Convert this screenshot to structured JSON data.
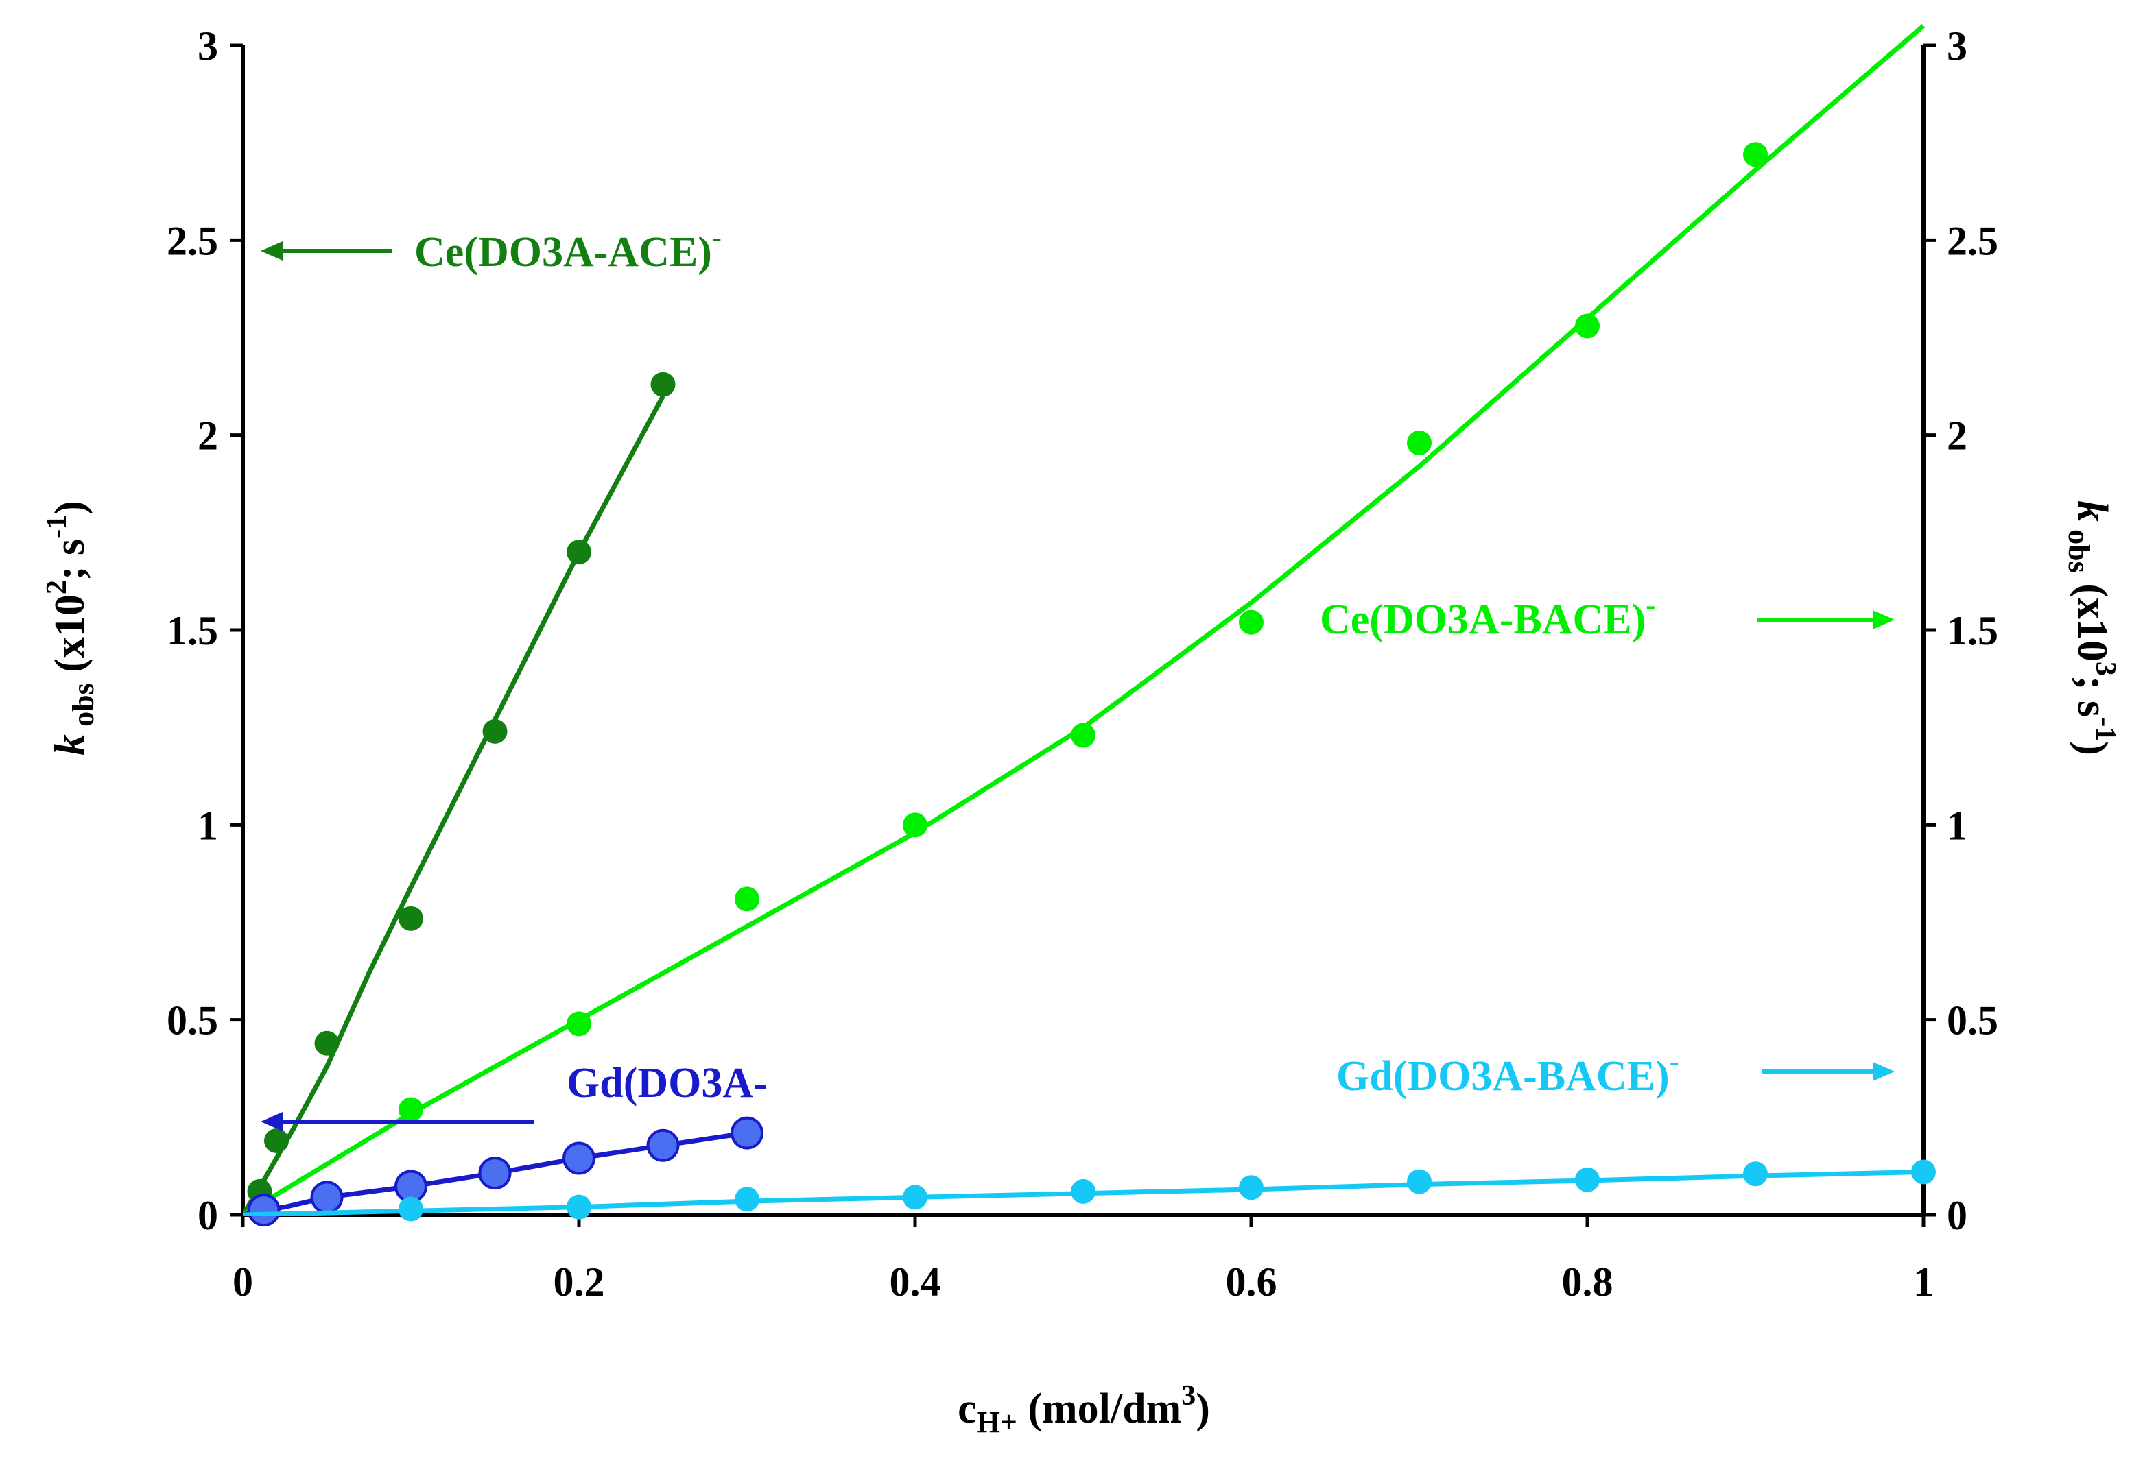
{
  "chart_data": {
    "type": "scatter",
    "x": {
      "label_main": "c",
      "label_sub": "H+",
      "label_rest": " (mol/dm",
      "label_sup": "3",
      "label_end": ")",
      "lim": [
        0,
        1
      ],
      "ticks": [
        0,
        0.2,
        0.4,
        0.6,
        0.8,
        1
      ],
      "tick_labels": [
        "0",
        "0.2",
        "0.4",
        "0.6",
        "0.8",
        "1"
      ]
    },
    "y_left": {
      "label_k": "k",
      "label_sub": " obs",
      "label_rest": " (x10",
      "label_sup": "2",
      "label_rest2": "; s",
      "label_sup2": "-1",
      "label_end": ")",
      "lim": [
        0,
        3
      ],
      "ticks": [
        0,
        0.5,
        1,
        1.5,
        2,
        2.5,
        3
      ],
      "tick_labels": [
        "0",
        "0.5",
        "1",
        "1.5",
        "2",
        "2.5",
        "3"
      ]
    },
    "y_right": {
      "label_k": "k",
      "label_sub": " obs",
      "label_rest": " (x10",
      "label_sup": "3",
      "label_rest2": "; s",
      "label_sup2": "-1",
      "label_end": ")",
      "lim": [
        0,
        3
      ],
      "ticks": [
        0,
        0.5,
        1,
        1.5,
        2,
        2.5,
        3
      ],
      "tick_labels": [
        "0",
        "0.5",
        "1",
        "1.5",
        "2",
        "2.5",
        "3"
      ]
    },
    "series": [
      {
        "name": "Ce(DO3A-ACE)",
        "name_sup": "-",
        "axis": "left",
        "color": "#137f13",
        "marker": "small",
        "points": [
          [
            0.01,
            0.06
          ],
          [
            0.02,
            0.19
          ],
          [
            0.05,
            0.44
          ],
          [
            0.1,
            0.76
          ],
          [
            0.15,
            1.24
          ],
          [
            0.2,
            1.7
          ],
          [
            0.25,
            2.13
          ]
        ],
        "fit": [
          [
            0,
            0.0
          ],
          [
            0.01,
            0.07
          ],
          [
            0.03,
            0.22
          ],
          [
            0.05,
            0.38
          ],
          [
            0.075,
            0.62
          ],
          [
            0.1,
            0.84
          ],
          [
            0.15,
            1.27
          ],
          [
            0.2,
            1.7
          ],
          [
            0.25,
            2.1
          ]
        ]
      },
      {
        "name": "Ce(DO3A-BACE)",
        "name_sup": "-",
        "axis": "right",
        "color": "#00ee00",
        "marker": "small",
        "points": [
          [
            0.1,
            0.27
          ],
          [
            0.2,
            0.49
          ],
          [
            0.3,
            0.81
          ],
          [
            0.4,
            1.0
          ],
          [
            0.5,
            1.23
          ],
          [
            0.6,
            1.52
          ],
          [
            0.7,
            1.98
          ],
          [
            0.8,
            2.28
          ],
          [
            0.9,
            2.72
          ]
        ],
        "fit": [
          [
            0,
            0.0
          ],
          [
            0.1,
            0.26
          ],
          [
            0.2,
            0.5
          ],
          [
            0.3,
            0.74
          ],
          [
            0.4,
            0.98
          ],
          [
            0.5,
            1.25
          ],
          [
            0.6,
            1.57
          ],
          [
            0.7,
            1.92
          ],
          [
            0.8,
            2.3
          ],
          [
            0.9,
            2.68
          ],
          [
            1.0,
            3.05
          ]
        ]
      },
      {
        "name": "Gd(DO3A-",
        "name_sup": "",
        "axis": "left",
        "color": "#1a1acd",
        "fill": "#4a6ff0",
        "marker": "large",
        "points": [
          [
            0.0125,
            0.012
          ],
          [
            0.05,
            0.045
          ],
          [
            0.1,
            0.073
          ],
          [
            0.15,
            0.107
          ],
          [
            0.2,
            0.145
          ],
          [
            0.25,
            0.178
          ],
          [
            0.3,
            0.21
          ]
        ],
        "fit": [
          [
            0,
            0.0
          ],
          [
            0.0125,
            0.012
          ],
          [
            0.025,
            0.02
          ],
          [
            0.05,
            0.045
          ],
          [
            0.1,
            0.073
          ],
          [
            0.15,
            0.107
          ],
          [
            0.2,
            0.145
          ],
          [
            0.25,
            0.178
          ],
          [
            0.3,
            0.21
          ]
        ]
      },
      {
        "name": "Gd(DO3A-BACE)",
        "name_sup": "-",
        "axis": "right",
        "color": "#16c8f5",
        "marker": "small",
        "points": [
          [
            0.1,
            0.015
          ],
          [
            0.2,
            0.02
          ],
          [
            0.3,
            0.04
          ],
          [
            0.4,
            0.045
          ],
          [
            0.5,
            0.06
          ],
          [
            0.6,
            0.07
          ],
          [
            0.7,
            0.085
          ],
          [
            0.8,
            0.09
          ],
          [
            0.9,
            0.105
          ],
          [
            1.0,
            0.11
          ]
        ],
        "fit": [
          [
            0,
            0.0
          ],
          [
            0.1,
            0.01
          ],
          [
            0.2,
            0.02
          ],
          [
            0.3,
            0.035
          ],
          [
            0.4,
            0.045
          ],
          [
            0.5,
            0.055
          ],
          [
            0.6,
            0.065
          ],
          [
            0.7,
            0.078
          ],
          [
            0.8,
            0.088
          ],
          [
            0.9,
            0.1
          ],
          [
            1.0,
            0.11
          ]
        ]
      }
    ]
  }
}
